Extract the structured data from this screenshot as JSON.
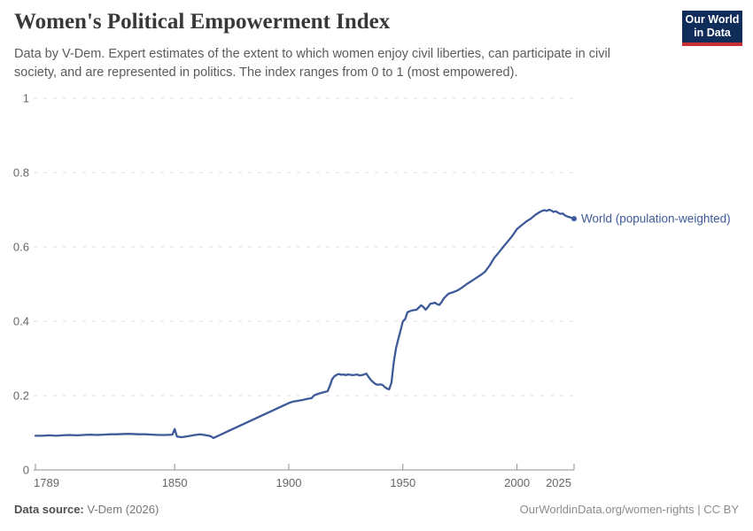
{
  "header": {
    "title": "Women's Political Empowerment Index",
    "subtitle": "Data by V-Dem. Expert estimates of the extent to which women enjoy civil liberties, can participate in civil society, and are represented in politics. The index ranges from 0 to 1 (most empowered).",
    "logo": {
      "line1": "Our World",
      "line2": "in Data"
    }
  },
  "footer": {
    "source_label": "Data source:",
    "source_value": " V-Dem (2026)",
    "credit": "OurWorldinData.org/women-rights | CC BY"
  },
  "colors": {
    "series_blue": "#3d5a99",
    "grid": "#dcdcdc",
    "axis": "#8f8f8f",
    "tick_text": "#666666",
    "logo_navy": "#102d5a",
    "logo_red": "#c43035"
  },
  "chart_data": {
    "type": "line",
    "title": "Women's Political Empowerment Index",
    "xlabel": "",
    "ylabel": "",
    "xlim": [
      1789,
      2025
    ],
    "ylim": [
      0,
      1
    ],
    "x_ticks": [
      1789,
      1850,
      1900,
      1950,
      2000,
      2025
    ],
    "y_ticks": [
      0,
      0.2,
      0.4,
      0.6,
      0.8,
      1
    ],
    "grid": "horizontal-dashed",
    "legend_position": "end-of-line-label",
    "series": [
      {
        "name": "World (population-weighted)",
        "points": [
          [
            1789,
            0.092
          ],
          [
            1792,
            0.092
          ],
          [
            1795,
            0.093
          ],
          [
            1798,
            0.092
          ],
          [
            1801,
            0.093
          ],
          [
            1804,
            0.094
          ],
          [
            1807,
            0.093
          ],
          [
            1810,
            0.094
          ],
          [
            1813,
            0.095
          ],
          [
            1816,
            0.094
          ],
          [
            1819,
            0.095
          ],
          [
            1822,
            0.096
          ],
          [
            1825,
            0.096
          ],
          [
            1828,
            0.097
          ],
          [
            1831,
            0.097
          ],
          [
            1834,
            0.096
          ],
          [
            1837,
            0.096
          ],
          [
            1840,
            0.095
          ],
          [
            1843,
            0.094
          ],
          [
            1846,
            0.094
          ],
          [
            1849,
            0.095
          ],
          [
            1850,
            0.11
          ],
          [
            1851,
            0.09
          ],
          [
            1853,
            0.088
          ],
          [
            1855,
            0.09
          ],
          [
            1857,
            0.092
          ],
          [
            1859,
            0.094
          ],
          [
            1861,
            0.096
          ],
          [
            1863,
            0.094
          ],
          [
            1865,
            0.092
          ],
          [
            1866,
            0.09
          ],
          [
            1867,
            0.086
          ],
          [
            1900,
            0.18
          ],
          [
            1902,
            0.184
          ],
          [
            1904,
            0.186
          ],
          [
            1906,
            0.188
          ],
          [
            1908,
            0.191
          ],
          [
            1910,
            0.193
          ],
          [
            1911,
            0.2
          ],
          [
            1912,
            0.203
          ],
          [
            1914,
            0.207
          ],
          [
            1916,
            0.21
          ],
          [
            1917,
            0.212
          ],
          [
            1918,
            0.226
          ],
          [
            1919,
            0.244
          ],
          [
            1920,
            0.252
          ],
          [
            1921,
            0.256
          ],
          [
            1922,
            0.258
          ],
          [
            1923,
            0.256
          ],
          [
            1924,
            0.257
          ],
          [
            1925,
            0.255
          ],
          [
            1926,
            0.257
          ],
          [
            1927,
            0.256
          ],
          [
            1928,
            0.255
          ],
          [
            1929,
            0.256
          ],
          [
            1930,
            0.257
          ],
          [
            1931,
            0.254
          ],
          [
            1932,
            0.255
          ],
          [
            1933,
            0.257
          ],
          [
            1934,
            0.259
          ],
          [
            1935,
            0.25
          ],
          [
            1936,
            0.242
          ],
          [
            1937,
            0.236
          ],
          [
            1938,
            0.231
          ],
          [
            1939,
            0.229
          ],
          [
            1940,
            0.23
          ],
          [
            1941,
            0.229
          ],
          [
            1942,
            0.223
          ],
          [
            1943,
            0.219
          ],
          [
            1944,
            0.217
          ],
          [
            1945,
            0.235
          ],
          [
            1946,
            0.29
          ],
          [
            1947,
            0.328
          ],
          [
            1948,
            0.352
          ],
          [
            1949,
            0.376
          ],
          [
            1950,
            0.4
          ],
          [
            1951,
            0.406
          ],
          [
            1952,
            0.424
          ],
          [
            1953,
            0.427
          ],
          [
            1954,
            0.429
          ],
          [
            1955,
            0.43
          ],
          [
            1956,
            0.431
          ],
          [
            1957,
            0.437
          ],
          [
            1958,
            0.443
          ],
          [
            1959,
            0.438
          ],
          [
            1960,
            0.431
          ],
          [
            1961,
            0.438
          ],
          [
            1962,
            0.447
          ],
          [
            1963,
            0.448
          ],
          [
            1964,
            0.45
          ],
          [
            1965,
            0.446
          ],
          [
            1966,
            0.444
          ],
          [
            1967,
            0.452
          ],
          [
            1968,
            0.462
          ],
          [
            1969,
            0.468
          ],
          [
            1970,
            0.474
          ],
          [
            1972,
            0.478
          ],
          [
            1974,
            0.483
          ],
          [
            1976,
            0.491
          ],
          [
            1978,
            0.5
          ],
          [
            1980,
            0.508
          ],
          [
            1982,
            0.516
          ],
          [
            1984,
            0.524
          ],
          [
            1986,
            0.533
          ],
          [
            1988,
            0.55
          ],
          [
            1990,
            0.57
          ],
          [
            1992,
            0.585
          ],
          [
            1994,
            0.6
          ],
          [
            1996,
            0.615
          ],
          [
            1998,
            0.63
          ],
          [
            2000,
            0.648
          ],
          [
            2002,
            0.658
          ],
          [
            2004,
            0.668
          ],
          [
            2006,
            0.676
          ],
          [
            2008,
            0.686
          ],
          [
            2010,
            0.694
          ],
          [
            2011,
            0.697
          ],
          [
            2012,
            0.699
          ],
          [
            2013,
            0.697
          ],
          [
            2014,
            0.7
          ],
          [
            2015,
            0.698
          ],
          [
            2016,
            0.694
          ],
          [
            2017,
            0.696
          ],
          [
            2018,
            0.692
          ],
          [
            2019,
            0.689
          ],
          [
            2020,
            0.69
          ],
          [
            2021,
            0.685
          ],
          [
            2022,
            0.682
          ],
          [
            2023,
            0.68
          ],
          [
            2024,
            0.678
          ],
          [
            2025,
            0.676
          ]
        ]
      }
    ]
  }
}
